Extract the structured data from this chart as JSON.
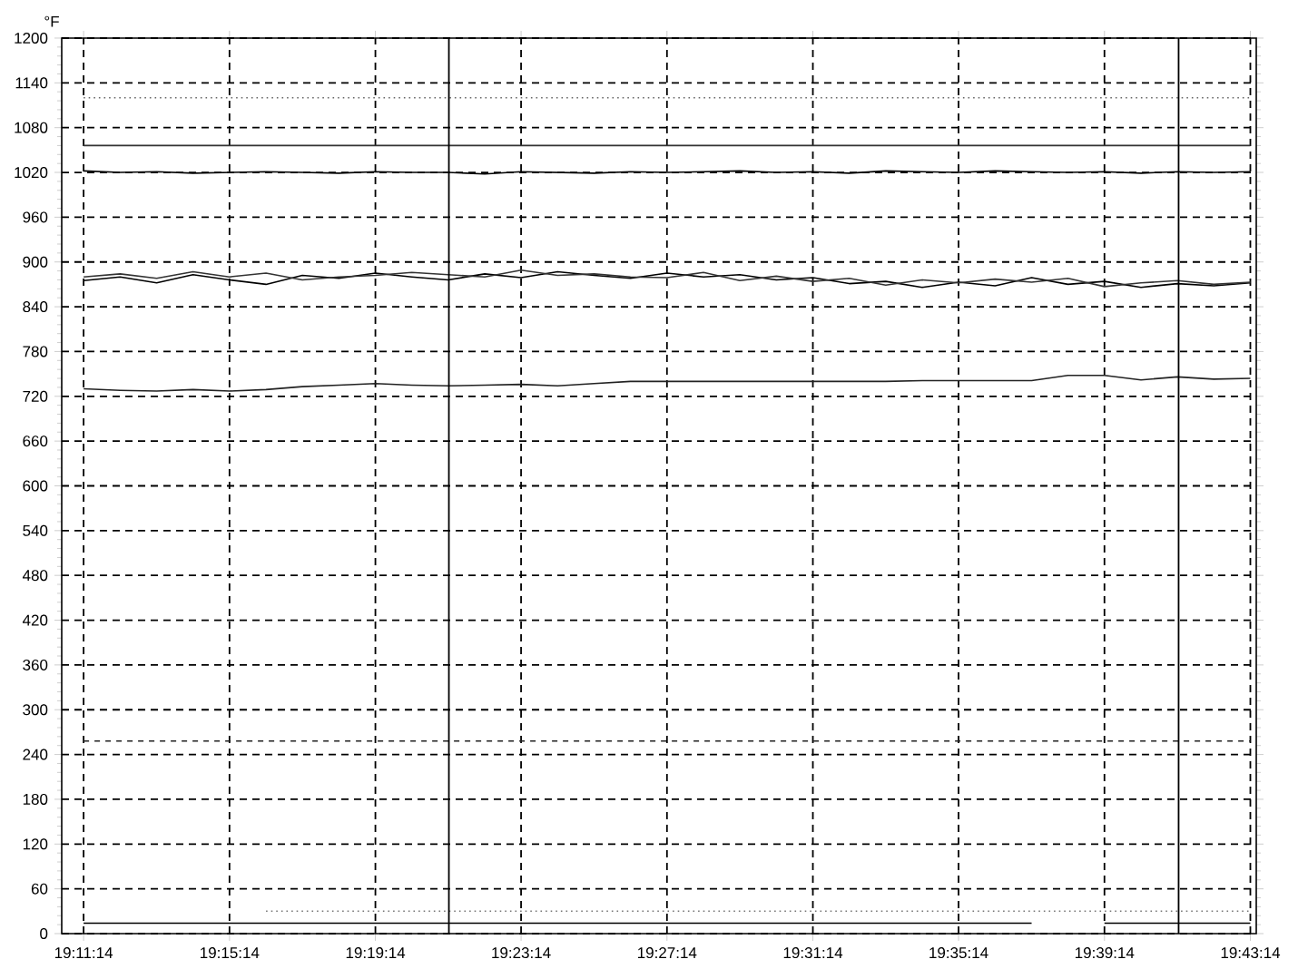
{
  "chart_data": {
    "type": "line",
    "ylabel": "°F",
    "grid": true,
    "x": [
      19.1872,
      19.2039,
      19.2206,
      19.2372,
      19.2539,
      19.2706,
      19.2872,
      19.3039,
      19.3206,
      19.3372,
      19.3539,
      19.3706,
      19.3872,
      19.4039,
      19.4206,
      19.4372,
      19.4539,
      19.4706,
      19.4872,
      19.5039,
      19.5206,
      19.5372,
      19.5539,
      19.5706,
      19.5872,
      19.6039,
      19.6206,
      19.6372,
      19.6539,
      19.6706,
      19.6872,
      19.7039,
      19.7206
    ],
    "xlim": [
      19.1772,
      19.7233
    ],
    "xticks": [
      {
        "value": 19.1872,
        "label": "19:11:14"
      },
      {
        "value": 19.2539,
        "label": "19:15:14"
      },
      {
        "value": 19.3206,
        "label": "19:19:14"
      },
      {
        "value": 19.3872,
        "label": "19:23:14"
      },
      {
        "value": 19.4539,
        "label": "19:27:14"
      },
      {
        "value": 19.5206,
        "label": "19:31:14"
      },
      {
        "value": 19.5872,
        "label": "19:35:14"
      },
      {
        "value": 19.6539,
        "label": "19:39:14"
      },
      {
        "value": 19.7206,
        "label": "19:43:14"
      }
    ],
    "ylim": [
      0,
      1200
    ],
    "yticks": [
      0,
      60,
      120,
      180,
      240,
      300,
      360,
      420,
      480,
      540,
      600,
      660,
      720,
      780,
      840,
      900,
      960,
      1020,
      1080,
      1140,
      1200
    ],
    "marker": "none",
    "series": [
      {
        "color": "#666666",
        "line_style": "dotted",
        "values": [
          1120,
          1120,
          1120,
          1120,
          1120,
          1120,
          1120,
          1120,
          1120,
          1120,
          1120,
          1120,
          1120,
          1120,
          1120,
          1120,
          1120,
          1120,
          1120,
          1120,
          1120,
          1120,
          1120,
          1120,
          1120,
          1120,
          1120,
          1120,
          1120,
          1120,
          1120,
          1120,
          1120
        ]
      },
      {
        "color": "#333333",
        "line_style": "solid",
        "values": [
          1056,
          1056,
          1056,
          1056,
          1056,
          1056,
          1056,
          1056,
          1056,
          1056,
          1056,
          1056,
          1056,
          1056,
          1056,
          1056,
          1056,
          1056,
          1056,
          1056,
          1056,
          1056,
          1056,
          1056,
          1056,
          1056,
          1056,
          1056,
          1056,
          1056,
          1056,
          1056,
          1056
        ]
      },
      {
        "color": "#000000",
        "line_style": "solid",
        "values": [
          1022,
          1020,
          1021,
          1019,
          1020,
          1021,
          1020,
          1019,
          1021,
          1020,
          1020,
          1018,
          1021,
          1020,
          1019,
          1021,
          1020,
          1021,
          1022,
          1020,
          1021,
          1019,
          1022,
          1021,
          1020,
          1022,
          1021,
          1020,
          1021,
          1019,
          1021,
          1020,
          1021
        ]
      },
      {
        "color": "#000000",
        "line_style": "solid",
        "values": [
          875,
          880,
          872,
          883,
          876,
          870,
          882,
          878,
          885,
          880,
          876,
          884,
          879,
          887,
          882,
          878,
          885,
          880,
          883,
          876,
          879,
          871,
          874,
          866,
          873,
          868,
          879,
          870,
          874,
          866,
          871,
          868,
          872
        ]
      },
      {
        "color": "#333333",
        "line_style": "solid",
        "values": [
          880,
          884,
          878,
          887,
          880,
          885,
          876,
          880,
          882,
          886,
          883,
          880,
          889,
          882,
          884,
          880,
          879,
          886,
          875,
          881,
          874,
          878,
          869,
          876,
          872,
          877,
          873,
          878,
          867,
          872,
          875,
          870,
          873
        ]
      },
      {
        "color": "#222222",
        "line_style": "solid",
        "values": [
          730,
          728,
          727,
          729,
          727,
          729,
          733,
          735,
          737,
          735,
          734,
          735,
          736,
          734,
          737,
          740,
          740,
          740,
          740,
          740,
          740,
          740,
          740,
          741,
          741,
          741,
          741,
          748,
          748,
          742,
          746,
          743,
          744
        ]
      },
      {
        "color": "#222222",
        "line_style": "dashed",
        "values": [
          258,
          258,
          258,
          258,
          258,
          258,
          258,
          258,
          258,
          258,
          258,
          258,
          258,
          258,
          258,
          258,
          258,
          258,
          258,
          258,
          258,
          258,
          258,
          258,
          258,
          258,
          258,
          258,
          258,
          258,
          258,
          258,
          258
        ]
      },
      {
        "color": "#777777",
        "line_style": "dotted",
        "values": [
          null,
          null,
          null,
          null,
          null,
          30,
          30,
          30,
          30,
          30,
          30,
          30,
          30,
          30,
          30,
          30,
          30,
          30,
          30,
          30,
          30,
          30,
          30,
          30,
          30,
          30,
          30,
          30,
          30,
          30,
          30,
          30,
          30
        ]
      },
      {
        "color": "#000000",
        "line_style": "solid",
        "values": [
          14,
          14,
          14,
          14,
          14,
          14,
          14,
          14,
          14,
          14,
          14,
          14,
          14,
          14,
          14,
          14,
          14,
          14,
          14,
          14,
          14,
          14,
          14,
          14,
          14,
          14,
          14,
          null,
          14,
          14,
          14,
          14,
          14
        ]
      }
    ],
    "ref_lines": [
      {
        "axis": "x",
        "value": 19.3542,
        "color": "#000000"
      },
      {
        "axis": "x",
        "value": 19.6878,
        "color": "#000000"
      }
    ]
  }
}
